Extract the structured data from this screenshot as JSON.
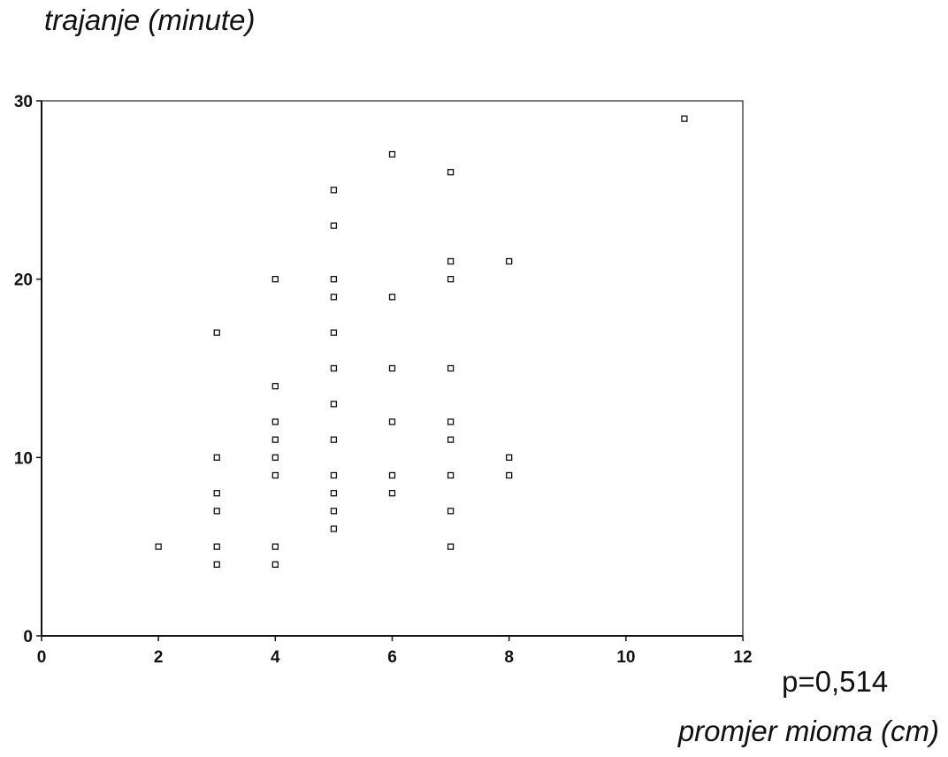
{
  "chart_data": {
    "type": "scatter",
    "xlabel": "promjer mioma (cm)",
    "ylabel": "trajanje (minute)",
    "annotation": "p=0,514",
    "xlim": [
      0,
      12
    ],
    "ylim": [
      0,
      30
    ],
    "x_ticks": [
      "0",
      "2",
      "4",
      "6",
      "8",
      "10",
      "12"
    ],
    "y_ticks": [
      "0",
      "10",
      "20",
      "30"
    ],
    "grid": false,
    "marker": "open-square",
    "points": [
      {
        "x": 2,
        "y": 5
      },
      {
        "x": 3,
        "y": 17
      },
      {
        "x": 3,
        "y": 10
      },
      {
        "x": 3,
        "y": 8
      },
      {
        "x": 3,
        "y": 7
      },
      {
        "x": 3,
        "y": 5
      },
      {
        "x": 3,
        "y": 4
      },
      {
        "x": 4,
        "y": 20
      },
      {
        "x": 4,
        "y": 14
      },
      {
        "x": 4,
        "y": 12
      },
      {
        "x": 4,
        "y": 11
      },
      {
        "x": 4,
        "y": 10
      },
      {
        "x": 4,
        "y": 9
      },
      {
        "x": 4,
        "y": 5
      },
      {
        "x": 4,
        "y": 4
      },
      {
        "x": 5,
        "y": 25
      },
      {
        "x": 5,
        "y": 23
      },
      {
        "x": 5,
        "y": 20
      },
      {
        "x": 5,
        "y": 19
      },
      {
        "x": 5,
        "y": 17
      },
      {
        "x": 5,
        "y": 15
      },
      {
        "x": 5,
        "y": 13
      },
      {
        "x": 5,
        "y": 11
      },
      {
        "x": 5,
        "y": 9
      },
      {
        "x": 5,
        "y": 8
      },
      {
        "x": 5,
        "y": 7
      },
      {
        "x": 5,
        "y": 6
      },
      {
        "x": 6,
        "y": 27
      },
      {
        "x": 6,
        "y": 19
      },
      {
        "x": 6,
        "y": 15
      },
      {
        "x": 6,
        "y": 12
      },
      {
        "x": 6,
        "y": 9
      },
      {
        "x": 6,
        "y": 8
      },
      {
        "x": 7,
        "y": 26
      },
      {
        "x": 7,
        "y": 21
      },
      {
        "x": 7,
        "y": 20
      },
      {
        "x": 7,
        "y": 15
      },
      {
        "x": 7,
        "y": 12
      },
      {
        "x": 7,
        "y": 11
      },
      {
        "x": 7,
        "y": 9
      },
      {
        "x": 7,
        "y": 7
      },
      {
        "x": 7,
        "y": 5
      },
      {
        "x": 8,
        "y": 21
      },
      {
        "x": 8,
        "y": 10
      },
      {
        "x": 8,
        "y": 9
      },
      {
        "x": 11,
        "y": 29
      }
    ]
  }
}
